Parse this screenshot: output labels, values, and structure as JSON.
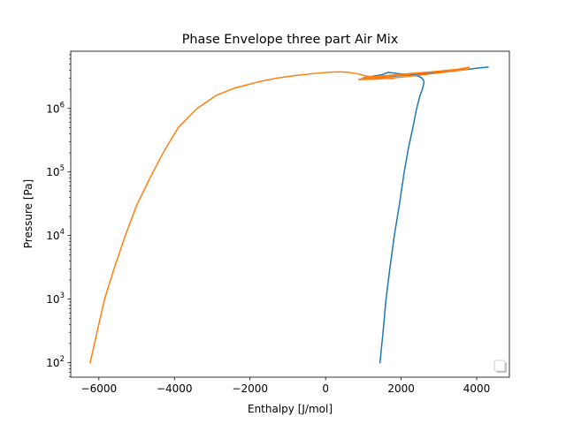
{
  "chart_data": {
    "type": "line",
    "title": "Phase Envelope three part Air Mix",
    "xlabel": "Enthalpy [J/mol]",
    "ylabel": "Pressure [Pa]",
    "xlim": [
      -6745,
      4865
    ],
    "ylim": [
      59,
      7950000
    ],
    "yscale": "log",
    "x_ticks": [
      -6000,
      -4000,
      -2000,
      0,
      2000,
      4000
    ],
    "x_tick_labels": [
      "−6000",
      "−4000",
      "−2000",
      "0",
      "2000",
      "4000"
    ],
    "y_ticks": [
      100,
      1000,
      10000,
      100000,
      1000000
    ],
    "y_tick_labels": [
      {
        "base": "10",
        "exp": "2"
      },
      {
        "base": "10",
        "exp": "3"
      },
      {
        "base": "10",
        "exp": "4"
      },
      {
        "base": "10",
        "exp": "5"
      },
      {
        "base": "10",
        "exp": "6"
      }
    ],
    "grid": false,
    "legend": {
      "position": "lower right",
      "entries": []
    },
    "series": [
      {
        "color": "#1f77b4",
        "x": [
          1440,
          1520,
          1600,
          1700,
          1820,
          1950,
          2080,
          2200,
          2310,
          2410,
          2500,
          2560,
          2595,
          2605,
          2590,
          2550,
          2470,
          2300,
          2100,
          1900,
          1650,
          1500,
          1300,
          1100,
          880,
          1000,
          1500,
          2000,
          2500,
          3000,
          3500,
          4000,
          4300
        ],
        "y": [
          100,
          300,
          1000,
          3000,
          10000,
          30000,
          100000,
          250000,
          500000,
          1000000,
          1600000,
          2000000,
          2400000,
          2600000,
          2800000,
          3000000,
          3200000,
          3350000,
          3450000,
          3550000,
          3700000,
          3400000,
          3250000,
          3100000,
          2850000,
          2900000,
          3100000,
          3300000,
          3500000,
          3700000,
          3950000,
          4300000,
          4500000
        ]
      },
      {
        "color": "#ff7f0e",
        "x": [
          -6230,
          -6050,
          -5850,
          -5600,
          -5300,
          -5000,
          -4650,
          -4300,
          -3900,
          -3400,
          -2900,
          -2400,
          -1800,
          -1300,
          -800,
          -300,
          0,
          200,
          400,
          600,
          800,
          900,
          1000,
          1200,
          1500,
          1800,
          1000,
          1500,
          2000,
          2500,
          3000,
          3500,
          3800,
          3500,
          3000,
          2500,
          2000,
          1500,
          1000,
          900,
          1400,
          2000,
          2600,
          3200,
          3750
        ],
        "y": [
          100,
          300,
          1000,
          3000,
          10000,
          30000,
          80000,
          200000,
          500000,
          1000000,
          1600000,
          2100000,
          2600000,
          3000000,
          3300000,
          3550000,
          3680000,
          3740000,
          3760000,
          3700000,
          3550000,
          3450000,
          3300000,
          3150000,
          3000000,
          2950000,
          3050000,
          3250000,
          3450000,
          3650000,
          3850000,
          4100000,
          4450000,
          4150000,
          3850000,
          3600000,
          3350000,
          3150000,
          2950000,
          2850000,
          2900000,
          3100000,
          3400000,
          3750000,
          4150000
        ]
      }
    ]
  }
}
